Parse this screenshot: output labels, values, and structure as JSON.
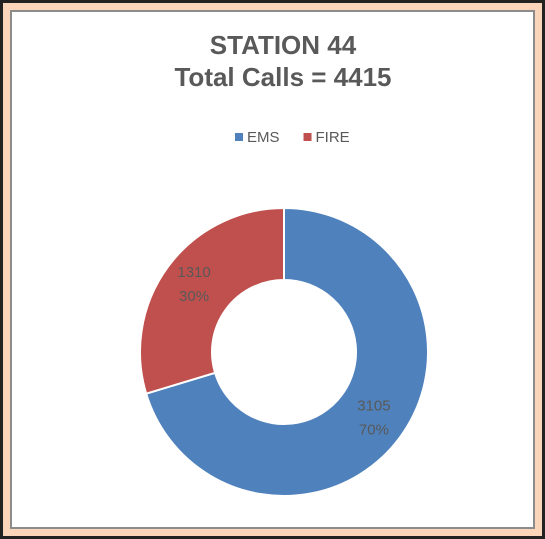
{
  "chart_data": {
    "type": "donut",
    "title": [
      "STATION 44",
      "Total Calls = 4415"
    ],
    "categories": [
      "EMS",
      "FIRE"
    ],
    "values": [
      3105,
      1310
    ],
    "percent_labels": [
      "70%",
      "30%"
    ],
    "colors": [
      "#4f81bd",
      "#c0504d"
    ],
    "legend": "top"
  }
}
